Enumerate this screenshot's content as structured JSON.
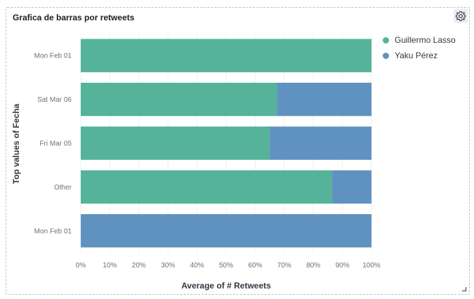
{
  "panel": {
    "title": "Grafica de barras por retweets",
    "settings_icon": "gear-icon",
    "resize_icon": "resize-corner-icon"
  },
  "chart_data": {
    "type": "bar",
    "orientation": "horizontal",
    "stacked": "percent",
    "categories": [
      "Mon Feb 01",
      "Sat Mar 06",
      "Fri Mar 05",
      "Other",
      "Mon Feb 01"
    ],
    "series": [
      {
        "name": "Guillermo Lasso",
        "color": "#54b399",
        "values": [
          100,
          67.5,
          65,
          86.5,
          0
        ]
      },
      {
        "name": "Yaku Pérez",
        "color": "#6092c0",
        "values": [
          0,
          32.5,
          35,
          13.5,
          100
        ]
      }
    ],
    "xlabel": "Average of # Retweets",
    "ylabel": "Top values of Fecha",
    "xticks": [
      "0%",
      "10%",
      "20%",
      "30%",
      "40%",
      "50%",
      "60%",
      "70%",
      "80%",
      "90%",
      "100%"
    ],
    "xlim": [
      0,
      100
    ],
    "legend_position": "right"
  }
}
